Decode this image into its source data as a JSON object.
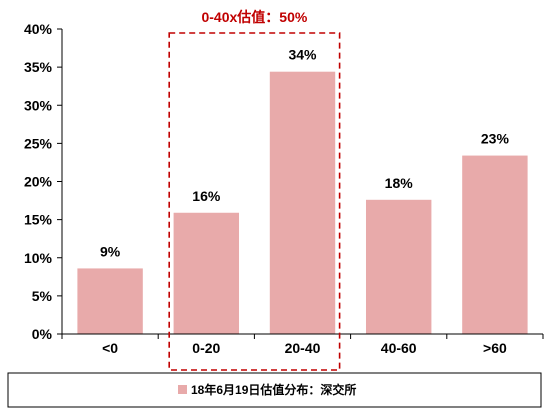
{
  "chart_data": {
    "type": "bar",
    "categories": [
      "<0",
      "0-20",
      "20-40",
      "40-60",
      ">60"
    ],
    "series": [
      {
        "name": "18年6月19日估值分布：深交所",
        "values": [
          8.6,
          15.9,
          34.4,
          17.6,
          23.4
        ],
        "data_labels": [
          "9%",
          "16%",
          "34%",
          "18%",
          "23%"
        ],
        "color": "#e8aaaa"
      }
    ],
    "y_ticks": [
      "0%",
      "5%",
      "10%",
      "15%",
      "20%",
      "25%",
      "30%",
      "35%",
      "40%"
    ],
    "ylim": [
      0,
      40
    ],
    "grid": false,
    "legend_position": "bottom",
    "annotation": {
      "text": "0-40x估值：50%",
      "covers_categories": [
        "0-20",
        "20-40"
      ],
      "color": "#c00000"
    }
  }
}
